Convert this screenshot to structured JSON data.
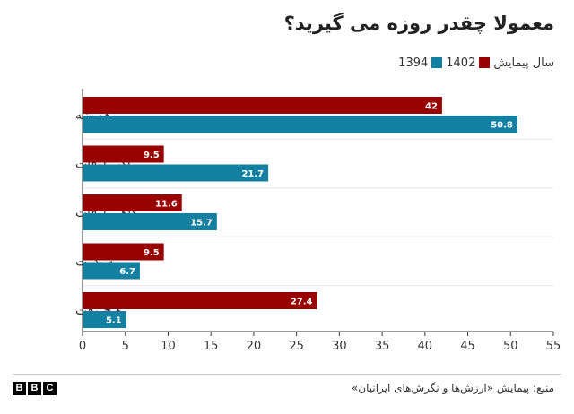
{
  "chart_data": {
    "type": "bar",
    "orientation": "horizontal",
    "title": "معمولا چقدر روزه می گیرید؟",
    "legend_title": "سال پیمایش",
    "categories": [
      "همیشه",
      "اکثر اوقات",
      "گاهی اوقات",
      "به ندرت",
      "هیچ وقت"
    ],
    "series": [
      {
        "name": "1402",
        "color": "#990000",
        "values": [
          42,
          9.5,
          11.6,
          9.5,
          27.4
        ]
      },
      {
        "name": "1394",
        "color": "#1380A1",
        "values": [
          50.8,
          21.7,
          15.7,
          6.7,
          5.1
        ]
      }
    ],
    "xlim": [
      0,
      55
    ],
    "x_ticks": [
      0,
      5,
      10,
      15,
      20,
      25,
      30,
      35,
      40,
      45,
      50,
      55
    ],
    "grid": true,
    "legend_position": "top-right"
  },
  "footer": {
    "source": "منبع: پیمایش «ارزش‌ها و نگرش‌های ایرانیان»",
    "logo": [
      "B",
      "B",
      "C"
    ]
  }
}
